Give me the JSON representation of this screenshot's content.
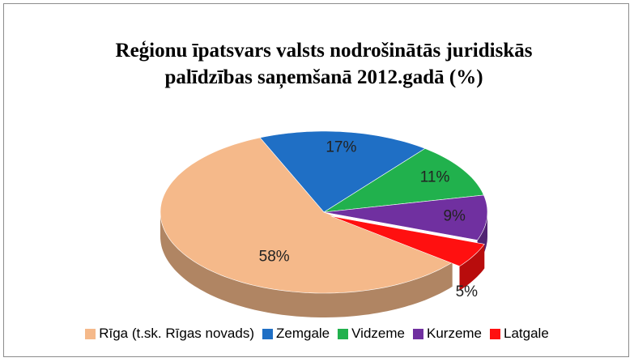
{
  "chart_data": {
    "type": "pie3d",
    "title": "Reģionu īpatsvars valsts nodrošinātās juridiskās palīdzības saņemšanā 2012.gadā (%)",
    "categories": [
      "Rīga (t.sk. Rīgas novads)",
      "Zemgale",
      "Vidzeme",
      "Kurzeme",
      "Latgale"
    ],
    "values": [
      58,
      17,
      11,
      9,
      5
    ],
    "value_labels": [
      "58%",
      "17%",
      "11%",
      "9%",
      "5%"
    ],
    "colors": [
      "#f5b98a",
      "#1f6fc5",
      "#21b14d",
      "#7030a0",
      "#ff1010"
    ],
    "legend": "bottom"
  }
}
